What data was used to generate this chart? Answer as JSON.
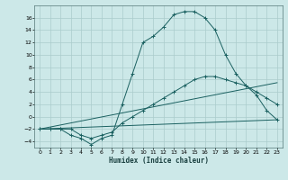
{
  "xlabel": "Humidex (Indice chaleur)",
  "background_color": "#cce8e8",
  "grid_color": "#aacccc",
  "line_color": "#1a6060",
  "xlim": [
    -0.5,
    23.5
  ],
  "ylim": [
    -5,
    18
  ],
  "xticks": [
    0,
    1,
    2,
    3,
    4,
    5,
    6,
    7,
    8,
    9,
    10,
    11,
    12,
    13,
    14,
    15,
    16,
    17,
    18,
    19,
    20,
    21,
    22,
    23
  ],
  "yticks": [
    -4,
    -2,
    0,
    2,
    4,
    6,
    8,
    10,
    12,
    14,
    16
  ],
  "line2_x": [
    0,
    1,
    2,
    3,
    4,
    5,
    6,
    7,
    8,
    9,
    10,
    11,
    12,
    13,
    14,
    15,
    16,
    17,
    18,
    19,
    20,
    21,
    22,
    23
  ],
  "line2_y": [
    -2,
    -2,
    -2,
    -3,
    -3.5,
    -4.5,
    -3.5,
    -3,
    2,
    7,
    12,
    13,
    14.5,
    16.5,
    17,
    17,
    16,
    14,
    10,
    7,
    5,
    3.5,
    1,
    -0.5
  ],
  "line1_x": [
    0,
    1,
    2,
    3,
    4,
    5,
    6,
    7,
    8,
    9,
    10,
    11,
    12,
    13,
    14,
    15,
    16,
    17,
    18,
    19,
    20,
    21,
    22,
    23
  ],
  "line1_y": [
    -2,
    -2,
    -2,
    -2,
    -3,
    -3.5,
    -3,
    -2.5,
    -1,
    0,
    1,
    2,
    3,
    4,
    5,
    6,
    6.5,
    6.5,
    6,
    5.5,
    5,
    4,
    3,
    2
  ],
  "line3_x": [
    0,
    23
  ],
  "line3_y": [
    -2,
    -0.5
  ],
  "line4_x": [
    0,
    23
  ],
  "line4_y": [
    -2,
    5.5
  ]
}
